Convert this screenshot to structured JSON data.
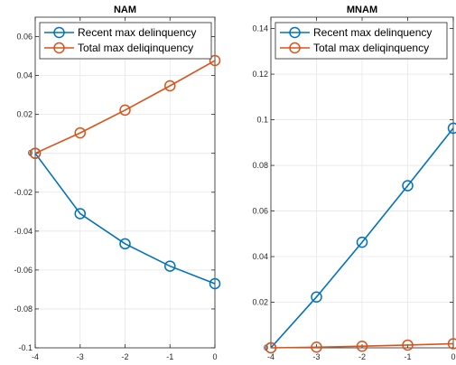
{
  "chart_data": [
    {
      "type": "line",
      "title": "NAM",
      "xlabel": "",
      "ylabel": "",
      "x": [
        -4,
        -3,
        -2,
        -1,
        0
      ],
      "xlim": [
        -4,
        0
      ],
      "ylim": [
        -0.1,
        0.07
      ],
      "xticks": [
        "-4",
        "-3",
        "-2",
        "-1",
        "0"
      ],
      "yticks": [
        "-0.1",
        "-0.08",
        "-0.06",
        "-0.04",
        "-0.02",
        "0",
        "0.02",
        "0.04",
        "0.06"
      ],
      "ytick_values": [
        -0.1,
        -0.08,
        -0.06,
        -0.04,
        -0.02,
        0,
        0.02,
        0.04,
        0.06
      ],
      "grid": true,
      "legend_position": "top-right",
      "series": [
        {
          "name": "Recent max delinquency",
          "color": "#0072BD",
          "marker": "circle-open",
          "values": [
            0,
            -0.031,
            -0.0465,
            -0.058,
            -0.067
          ]
        },
        {
          "name": "Total max deliqinquency",
          "color": "#D95319",
          "marker": "circle-open",
          "values": [
            0,
            0.0105,
            0.0222,
            0.0347,
            0.0477
          ]
        }
      ]
    },
    {
      "type": "line",
      "title": "MNAM",
      "xlabel": "",
      "ylabel": "",
      "x": [
        -4,
        -3,
        -2,
        -1,
        0
      ],
      "xlim": [
        -4,
        0
      ],
      "ylim": [
        0,
        0.145
      ],
      "xticks": [
        "-4",
        "-3",
        "-2",
        "-1",
        "0"
      ],
      "yticks": [
        "0",
        "0.02",
        "0.04",
        "0.06",
        "0.08",
        "0.1",
        "0.12",
        "0.14"
      ],
      "ytick_values": [
        0,
        0.02,
        0.04,
        0.06,
        0.08,
        0.1,
        0.12,
        0.14
      ],
      "grid": true,
      "legend_position": "top-right",
      "series": [
        {
          "name": "Recent max delinquency",
          "color": "#0072BD",
          "marker": "circle-open",
          "values": [
            0,
            0.0223,
            0.0463,
            0.0711,
            0.0963
          ]
        },
        {
          "name": "Total max deliqinquency",
          "color": "#D95319",
          "marker": "circle-open",
          "values": [
            0,
            0.0003,
            0.0007,
            0.0012,
            0.0018
          ]
        }
      ]
    }
  ]
}
